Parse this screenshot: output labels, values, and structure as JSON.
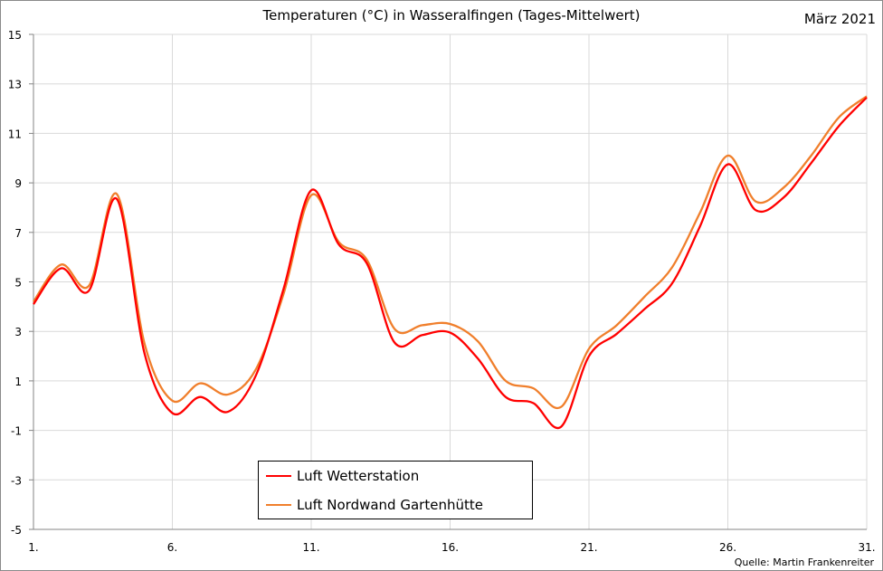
{
  "chart_data": {
    "type": "line",
    "title": "Temperaturen (°C) in Wasseralfingen (Tages-Mittelwert)",
    "subtitle": "März 2021",
    "source": "Quelle: Martin Frankenreiter",
    "xlabel": "",
    "ylabel": "",
    "x": [
      1,
      2,
      3,
      4,
      5,
      6,
      7,
      8,
      9,
      10,
      11,
      12,
      13,
      14,
      15,
      16,
      17,
      18,
      19,
      20,
      21,
      22,
      23,
      24,
      25,
      26,
      27,
      28,
      29,
      30,
      31
    ],
    "xlim": [
      1,
      31
    ],
    "ylim": [
      -5,
      15
    ],
    "x_ticks": [
      1,
      6,
      11,
      16,
      21,
      26,
      31
    ],
    "x_tick_labels": [
      "1.",
      "6.",
      "11.",
      "16.",
      "21.",
      "26.",
      "31."
    ],
    "y_ticks": [
      -5,
      -3,
      -1,
      1,
      3,
      5,
      7,
      9,
      11,
      13,
      15
    ],
    "y_tick_labels": [
      "-5",
      "-3",
      "-1",
      "1",
      "3",
      "5",
      "7",
      "9",
      "11",
      "13",
      "15"
    ],
    "grid": true,
    "legend_position": "bottom-center",
    "series": [
      {
        "name": "Luft Wetterstation",
        "color": "#ff0000",
        "values": [
          4.1,
          5.55,
          4.65,
          8.35,
          2.1,
          -0.3,
          0.35,
          -0.25,
          1.2,
          4.7,
          8.7,
          6.5,
          5.75,
          2.55,
          2.85,
          2.95,
          1.9,
          0.35,
          0.1,
          -0.85,
          2.0,
          2.9,
          3.9,
          4.95,
          7.25,
          9.75,
          7.9,
          8.4,
          9.8,
          11.3,
          12.45
        ]
      },
      {
        "name": "Luft Nordwand Gartenhütte",
        "color": "#f07f2c",
        "values": [
          4.2,
          5.7,
          4.85,
          8.55,
          2.5,
          0.2,
          0.9,
          0.45,
          1.45,
          4.5,
          8.5,
          6.6,
          5.9,
          3.1,
          3.25,
          3.3,
          2.6,
          1.0,
          0.7,
          -0.05,
          2.3,
          3.25,
          4.4,
          5.6,
          7.8,
          10.1,
          8.25,
          8.8,
          10.1,
          11.65,
          12.5
        ]
      }
    ]
  }
}
